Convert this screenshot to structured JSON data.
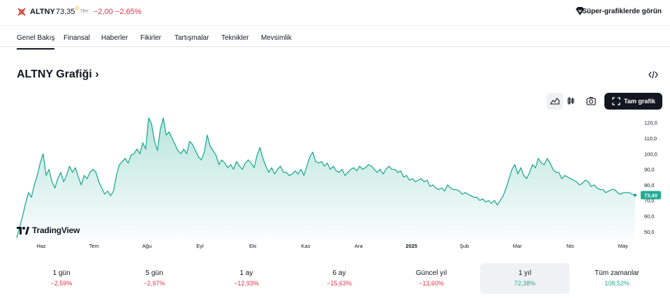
{
  "header": {
    "symbol": "ALTNY",
    "price": "73,35",
    "price_sup": "D",
    "currency": "TRY",
    "change": "−2,00",
    "change_pct": "−2,65%",
    "super_charts": "Süper-grafiklerde görün"
  },
  "tabs": [
    "Genel Bakış",
    "Finansal",
    "Haberler",
    "Fikirler",
    "Tartışmalar",
    "Teknikler",
    "Mevsimlik"
  ],
  "chart_section": {
    "title": "ALTNY Grafiği",
    "title_chevron": "›",
    "full_chart": "Tam grafik",
    "logo": "TradingView"
  },
  "periods": [
    {
      "label": "1 gün",
      "value": "−2,59%",
      "dir": "neg"
    },
    {
      "label": "5 gün",
      "value": "−2,97%",
      "dir": "neg"
    },
    {
      "label": "1 ay",
      "value": "−12,93%",
      "dir": "neg"
    },
    {
      "label": "6 ay",
      "value": "−15,63%",
      "dir": "neg"
    },
    {
      "label": "Güncel yıl",
      "value": "−13,60%",
      "dir": "neg"
    },
    {
      "label": "1 yıl",
      "value": "72,38%",
      "dir": "pos",
      "selected": true
    },
    {
      "label": "Tüm zamanlar",
      "value": "108,52%",
      "dir": "pos"
    }
  ],
  "colors": {
    "line": "#22ab94",
    "negative": "#e0334b",
    "positive": "#22ab94",
    "last_price_tag": "#22ab94"
  },
  "chart_data": {
    "type": "area",
    "title": "",
    "ylim": [
      45,
      127
    ],
    "y_ticks": [
      "120,0",
      "110,0",
      "100,0",
      "90,0",
      "80,0",
      "70,0",
      "60,0",
      "50,0"
    ],
    "y_tick_values": [
      120,
      110,
      100,
      90,
      80,
      70,
      60,
      50
    ],
    "x_ticks": [
      "Haz",
      "Tem",
      "Ağu",
      "Eyl",
      "Eki",
      "Kas",
      "Ara",
      "2025",
      "Şub",
      "Mar",
      "Nis",
      "May"
    ],
    "x_tick_bold": [
      false,
      false,
      false,
      false,
      false,
      false,
      false,
      true,
      false,
      false,
      false,
      false
    ],
    "last_value": 73.4,
    "last_value_label": "73,40",
    "grid": false,
    "series": [
      {
        "values": [
          46,
          53,
          60,
          68,
          75,
          72,
          80,
          86,
          94,
          100,
          86,
          90,
          82,
          78,
          84,
          88,
          82,
          86,
          92,
          88,
          91,
          85,
          80,
          86,
          84,
          88,
          90,
          88,
          82,
          78,
          74,
          76,
          73,
          76,
          86,
          93,
          95,
          97,
          94,
          99,
          100,
          103,
          100,
          107,
          103,
          123,
          119,
          108,
          102,
          116,
          123,
          112,
          114,
          110,
          106,
          102,
          100,
          103,
          100,
          108,
          106,
          102,
          98,
          96,
          101,
          112,
          105,
          102,
          99,
          93,
          96,
          94,
          91,
          93,
          90,
          95,
          92,
          90,
          94,
          96,
          94,
          91,
          99,
          104,
          97,
          92,
          88,
          91,
          87,
          90,
          92,
          88,
          88,
          86,
          87,
          89,
          87,
          90,
          86,
          92,
          98,
          101,
          95,
          94,
          95,
          92,
          94,
          90,
          92,
          89,
          88,
          90,
          86,
          88,
          90,
          91,
          89,
          92,
          90,
          91,
          93,
          92,
          90,
          88,
          90,
          87,
          90,
          92,
          90,
          90,
          88,
          89,
          85,
          86,
          83,
          84,
          82,
          83,
          84,
          82,
          83,
          79,
          80,
          78,
          77,
          78,
          76,
          80,
          78,
          77,
          77,
          76,
          74,
          75,
          74,
          73,
          72,
          72,
          70,
          71,
          69,
          70,
          68,
          70,
          67,
          70,
          73,
          78,
          84,
          90,
          93,
          87,
          91,
          86,
          84,
          88,
          93,
          91,
          97,
          94,
          93,
          97,
          94,
          90,
          88,
          88,
          84,
          86,
          85,
          84,
          83,
          82,
          80,
          81,
          83,
          82,
          79,
          80,
          78,
          77,
          77,
          75,
          76,
          77,
          77,
          75,
          74,
          75,
          75,
          75,
          74,
          73.4
        ]
      }
    ]
  }
}
